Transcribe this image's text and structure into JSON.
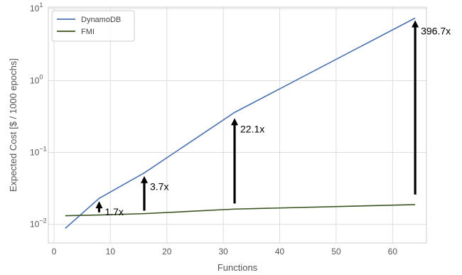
{
  "chart_data": {
    "type": "line",
    "xlabel": "Functions",
    "ylabel": "Expected Cost [$ / 1000 epochs]",
    "xlim": [
      -1,
      66
    ],
    "ylim": [
      0.0055,
      10.5
    ],
    "yscale": "log",
    "grid": true,
    "legend_position": "top-left",
    "x_ticks": [
      0,
      10,
      20,
      30,
      40,
      50,
      60
    ],
    "x_tick_labels": [
      "0",
      "10",
      "20",
      "30",
      "40",
      "50",
      "60"
    ],
    "y_ticks": [
      {
        "value": 0.01,
        "base": "10",
        "exp": "−2"
      },
      {
        "value": 0.1,
        "base": "10",
        "exp": "−1"
      },
      {
        "value": 1,
        "base": "10",
        "exp": "0"
      },
      {
        "value": 10,
        "base": "10",
        "exp": "1"
      }
    ],
    "series": [
      {
        "name": "DynamoDB",
        "color": "#4c72b0",
        "x": [
          2,
          8,
          16,
          32,
          64
        ],
        "y": [
          0.0088,
          0.023,
          0.052,
          0.36,
          7.4
        ]
      },
      {
        "name": "FMI",
        "color": "#3b5321",
        "x": [
          2,
          8,
          16,
          32,
          64
        ],
        "y": [
          0.0132,
          0.0135,
          0.0141,
          0.0163,
          0.0188
        ]
      }
    ],
    "annotations": [
      {
        "x": 8,
        "y_from": 0.0147,
        "y_to": 0.021,
        "label": "1.7x"
      },
      {
        "x": 16,
        "y_from": 0.0155,
        "y_to": 0.047,
        "label": "3.7x"
      },
      {
        "x": 32,
        "y_from": 0.0195,
        "y_to": 0.3,
        "label": "22.1x"
      },
      {
        "x": 64,
        "y_from": 0.026,
        "y_to": 6.9,
        "label": "396.7x"
      }
    ]
  }
}
